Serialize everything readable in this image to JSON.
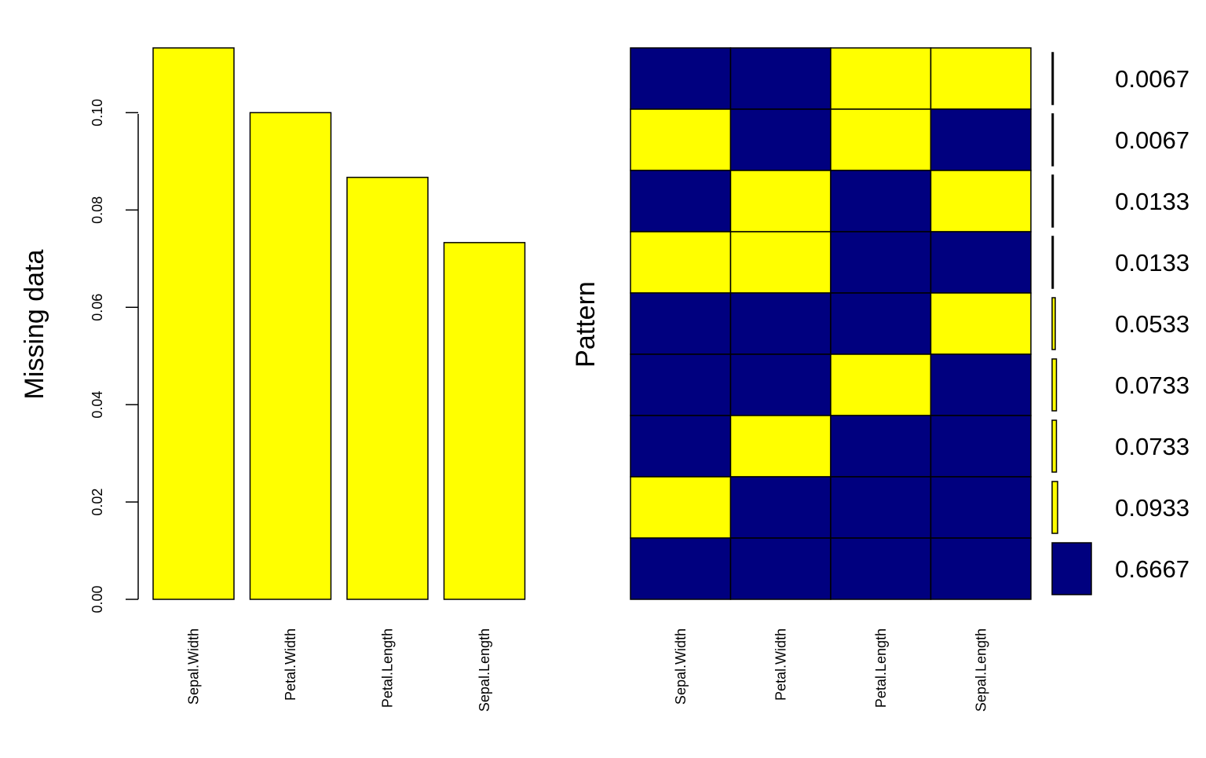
{
  "chart_data": [
    {
      "type": "bar",
      "ylabel": "Missing data",
      "categories": [
        "Sepal.Width",
        "Petal.Width",
        "Petal.Length",
        "Sepal.Length"
      ],
      "values": [
        0.1133,
        0.1,
        0.0867,
        0.0733
      ],
      "ylim": [
        0,
        0.1133
      ],
      "y_ticks": [
        "0.00",
        "0.02",
        "0.04",
        "0.06",
        "0.08",
        "0.10"
      ],
      "bar_color": "#FFFF00"
    },
    {
      "type": "heatmap",
      "ylabel": "Pattern",
      "columns": [
        "Sepal.Width",
        "Petal.Width",
        "Petal.Length",
        "Sepal.Length"
      ],
      "missing_color": "#FFFF00",
      "observed_color": "#00007F",
      "patterns": [
        {
          "cells": [
            0,
            0,
            1,
            1
          ],
          "proportion": 0.0067,
          "label": "0.0067"
        },
        {
          "cells": [
            1,
            0,
            1,
            0
          ],
          "proportion": 0.0067,
          "label": "0.0067"
        },
        {
          "cells": [
            0,
            1,
            0,
            1
          ],
          "proportion": 0.0133,
          "label": "0.0133"
        },
        {
          "cells": [
            1,
            1,
            0,
            0
          ],
          "proportion": 0.0133,
          "label": "0.0133"
        },
        {
          "cells": [
            0,
            0,
            0,
            1
          ],
          "proportion": 0.0533,
          "label": "0.0533"
        },
        {
          "cells": [
            0,
            0,
            1,
            0
          ],
          "proportion": 0.0733,
          "label": "0.0733"
        },
        {
          "cells": [
            0,
            1,
            0,
            0
          ],
          "proportion": 0.0733,
          "label": "0.0733"
        },
        {
          "cells": [
            1,
            0,
            0,
            0
          ],
          "proportion": 0.0933,
          "label": "0.0933"
        },
        {
          "cells": [
            0,
            0,
            0,
            0
          ],
          "proportion": 0.6667,
          "label": "0.6667"
        }
      ]
    }
  ]
}
